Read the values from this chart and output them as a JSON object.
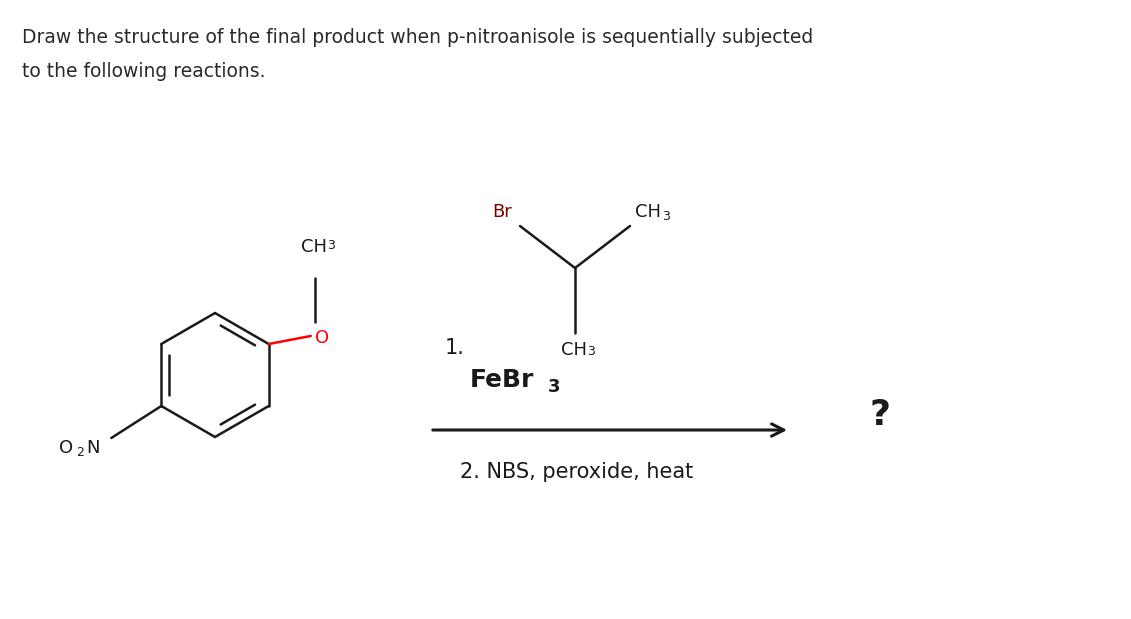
{
  "title_line1": "Draw the structure of the final product when p-nitroanisole is sequentially subjected",
  "title_line2": "to the following reactions.",
  "title_fontsize": 13.5,
  "title_color": "#2a2a2a",
  "background_color": "#ffffff",
  "bond_color": "#1a1a1a",
  "oxygen_color": "#ff0000",
  "bromine_color": "#7a0000",
  "label_color": "#1a1a1a",
  "arrow_color": "#1a1a1a",
  "question_mark": "?",
  "reaction1": "1.",
  "reagent2": "2. NBS, peroxide, heat"
}
